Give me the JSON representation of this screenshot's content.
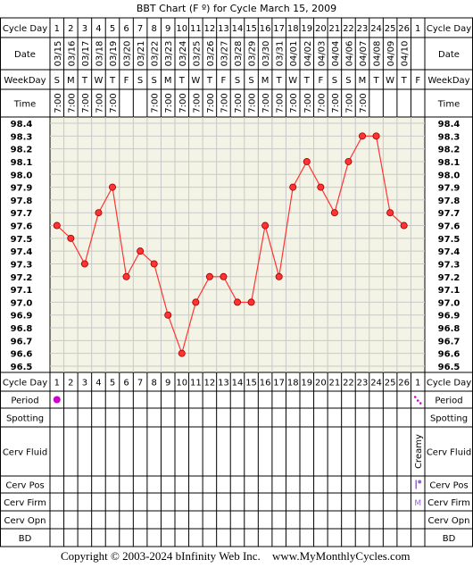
{
  "title": "BBT Chart (F º) for Cycle March 15, 2009",
  "labels": {
    "cycle_day": "Cycle Day",
    "date": "Date",
    "weekday": "WeekDay",
    "time": "Time",
    "period": "Period",
    "spotting": "Spotting",
    "cerv_fluid": "Cerv Fluid",
    "cerv_pos": "Cerv Pos",
    "cerv_firm": "Cerv Firm",
    "cerv_opn": "Cerv Opn",
    "bd": "BD"
  },
  "days": [
    "1",
    "2",
    "3",
    "4",
    "5",
    "6",
    "7",
    "8",
    "9",
    "10",
    "11",
    "12",
    "13",
    "14",
    "15",
    "16",
    "17",
    "18",
    "19",
    "20",
    "21",
    "22",
    "23",
    "24",
    "25",
    "26",
    "1"
  ],
  "dates": [
    "03/15",
    "03/16",
    "03/17",
    "03/18",
    "03/19",
    "03/20",
    "03/21",
    "03/22",
    "03/23",
    "03/24",
    "03/25",
    "03/26",
    "03/27",
    "03/28",
    "03/29",
    "03/30",
    "03/31",
    "04/01",
    "04/02",
    "04/03",
    "04/04",
    "04/06",
    "04/07",
    "04/08",
    "04/09",
    "04/10",
    ""
  ],
  "weekdays": [
    "S",
    "M",
    "T",
    "W",
    "T",
    "F",
    "S",
    "S",
    "M",
    "T",
    "W",
    "T",
    "F",
    "S",
    "S",
    "M",
    "T",
    "W",
    "T",
    "F",
    "S",
    "S",
    "M",
    "T",
    "W",
    "T",
    "F"
  ],
  "times": [
    "7:00",
    "7:00",
    "7:00",
    "7:00",
    "7:00",
    "",
    "",
    "7:00",
    "7:00",
    "7:00",
    "7:00",
    "7:00",
    "7:00",
    "7:00",
    "7:00",
    "7:00",
    "7:00",
    "7:00",
    "7:00",
    "7:00",
    "7:00",
    "7:00",
    "7:00",
    "",
    "",
    "",
    ""
  ],
  "temp_ticks": [
    "98.4",
    "98.3",
    "98.2",
    "98.1",
    "98.0",
    "97.9",
    "97.8",
    "97.7",
    "97.6",
    "97.5",
    "97.4",
    "97.3",
    "97.2",
    "97.1",
    "97.0",
    "96.9",
    "96.8",
    "96.7",
    "96.6",
    "96.5"
  ],
  "period_days": [
    1
  ],
  "next_cycle_col": {
    "cerv_fluid": "Creamy",
    "cerv_pos_icon": "low-position-icon",
    "cerv_firm": "M",
    "period_icon": "light-period-dots-icon"
  },
  "colors": {
    "line": "#ff3333",
    "point": "#ff3333",
    "period_dot": "#cc00cc",
    "grid_bg": "#f4f4e6",
    "grid_line": "#c8c8c8"
  },
  "chart_data": {
    "type": "line",
    "title": "BBT Chart (F º) for Cycle March 15, 2009",
    "xlabel": "Cycle Day",
    "ylabel": "",
    "ylim": [
      96.5,
      98.4
    ],
    "grid": true,
    "x": [
      1,
      2,
      3,
      4,
      5,
      6,
      7,
      8,
      9,
      10,
      11,
      12,
      13,
      14,
      15,
      16,
      17,
      18,
      19,
      20,
      21,
      22,
      23,
      24,
      25,
      26
    ],
    "y": [
      97.6,
      97.5,
      97.3,
      97.7,
      97.9,
      97.2,
      97.4,
      97.3,
      96.9,
      96.6,
      97.0,
      97.2,
      97.2,
      97.0,
      97.0,
      97.6,
      97.2,
      97.9,
      98.1,
      97.9,
      97.7,
      98.1,
      98.3,
      98.3,
      97.7,
      97.6
    ]
  },
  "footer": {
    "copyright": "Copyright © 2003-2024 bInfinity Web Inc.",
    "url": "www.MyMonthlyCycles.com"
  }
}
